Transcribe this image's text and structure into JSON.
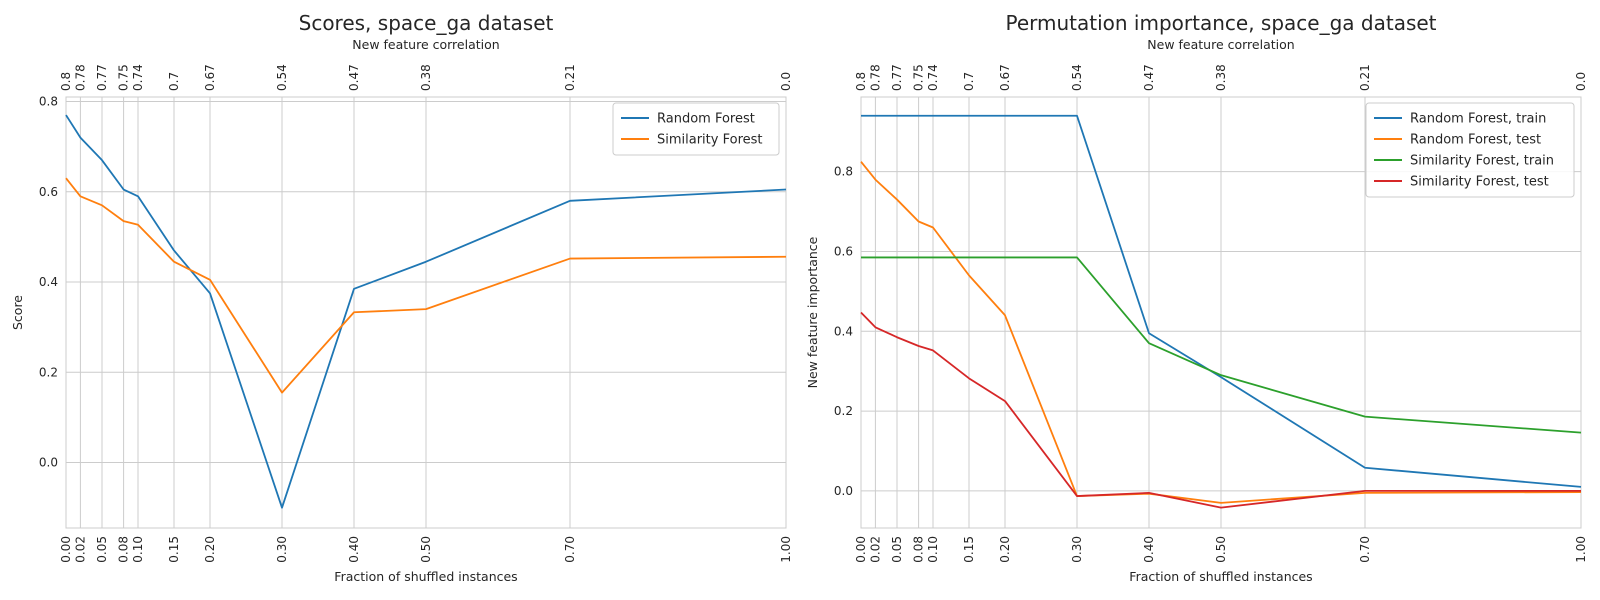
{
  "chart_data": [
    {
      "type": "line",
      "title": "Scores, space_ga dataset",
      "xlabel": "Fraction of shuffled instances",
      "ylabel": "Score",
      "top_xlabel": "New feature correlation",
      "x": [
        0.0,
        0.02,
        0.05,
        0.08,
        0.1,
        0.15,
        0.2,
        0.3,
        0.4,
        0.5,
        0.7,
        1.0
      ],
      "x_tick_labels": [
        "0.00",
        "0.02",
        "0.05",
        "0.08",
        "0.10",
        "0.15",
        "0.20",
        "0.30",
        "0.40",
        "0.50",
        "0.70",
        "1.00"
      ],
      "top_tick_labels": [
        "0.8",
        "0.78",
        "0.77",
        "0.75",
        "0.74",
        "0.7",
        "0.67",
        "0.54",
        "0.47",
        "0.38",
        "0.21",
        "0.0"
      ],
      "xlim": [
        0.0,
        1.0
      ],
      "ylim": [
        -0.145,
        0.81
      ],
      "yticks": [
        0.0,
        0.2,
        0.4,
        0.6,
        0.8
      ],
      "ytick_labels": [
        "0.0",
        "0.2",
        "0.4",
        "0.6",
        "0.8"
      ],
      "grid": true,
      "legend_position": "top-right",
      "series": [
        {
          "name": "Random Forest",
          "color": "#1f77b4",
          "values": [
            0.77,
            0.72,
            0.67,
            0.605,
            0.59,
            0.47,
            0.375,
            -0.1,
            0.385,
            0.445,
            0.58,
            0.605
          ]
        },
        {
          "name": "Similarity Forest",
          "color": "#ff7f0e",
          "values": [
            0.63,
            0.59,
            0.57,
            0.535,
            0.527,
            0.445,
            0.405,
            0.155,
            0.333,
            0.34,
            0.452,
            0.456
          ]
        }
      ]
    },
    {
      "type": "line",
      "title": "Permutation importance, space_ga dataset",
      "xlabel": "Fraction of shuffled instances",
      "ylabel": "New feature importance",
      "top_xlabel": "New feature correlation",
      "x": [
        0.0,
        0.02,
        0.05,
        0.08,
        0.1,
        0.15,
        0.2,
        0.3,
        0.4,
        0.5,
        0.7,
        1.0
      ],
      "x_tick_labels": [
        "0.00",
        "0.02",
        "0.05",
        "0.08",
        "0.10",
        "0.15",
        "0.20",
        "0.30",
        "0.40",
        "0.50",
        "0.70",
        "1.00"
      ],
      "top_tick_labels": [
        "0.8",
        "0.78",
        "0.77",
        "0.75",
        "0.74",
        "0.7",
        "0.67",
        "0.54",
        "0.47",
        "0.38",
        "0.21",
        "0.0"
      ],
      "xlim": [
        0.0,
        1.0
      ],
      "ylim": [
        -0.093,
        0.987
      ],
      "yticks": [
        0.0,
        0.2,
        0.4,
        0.6,
        0.8
      ],
      "ytick_labels": [
        "0.0",
        "0.2",
        "0.4",
        "0.6",
        "0.8"
      ],
      "grid": true,
      "legend_position": "top-right",
      "series": [
        {
          "name": "Random Forest, train",
          "color": "#1f77b4",
          "values": [
            0.94,
            0.94,
            0.94,
            0.94,
            0.94,
            0.94,
            0.94,
            0.94,
            0.395,
            0.285,
            0.058,
            0.01
          ]
        },
        {
          "name": "Random Forest, test",
          "color": "#ff7f0e",
          "values": [
            0.825,
            0.78,
            0.73,
            0.675,
            0.66,
            0.54,
            0.44,
            -0.013,
            -0.007,
            -0.03,
            -0.005,
            -0.003
          ]
        },
        {
          "name": "Similarity Forest, train",
          "color": "#2ca02c",
          "values": [
            0.585,
            0.585,
            0.585,
            0.585,
            0.585,
            0.585,
            0.585,
            0.585,
            0.37,
            0.29,
            0.186,
            0.146
          ]
        },
        {
          "name": "Similarity Forest, test",
          "color": "#d62728",
          "values": [
            0.447,
            0.41,
            0.385,
            0.363,
            0.352,
            0.282,
            0.225,
            -0.013,
            -0.005,
            -0.042,
            0.0,
            0.0
          ]
        }
      ]
    }
  ]
}
